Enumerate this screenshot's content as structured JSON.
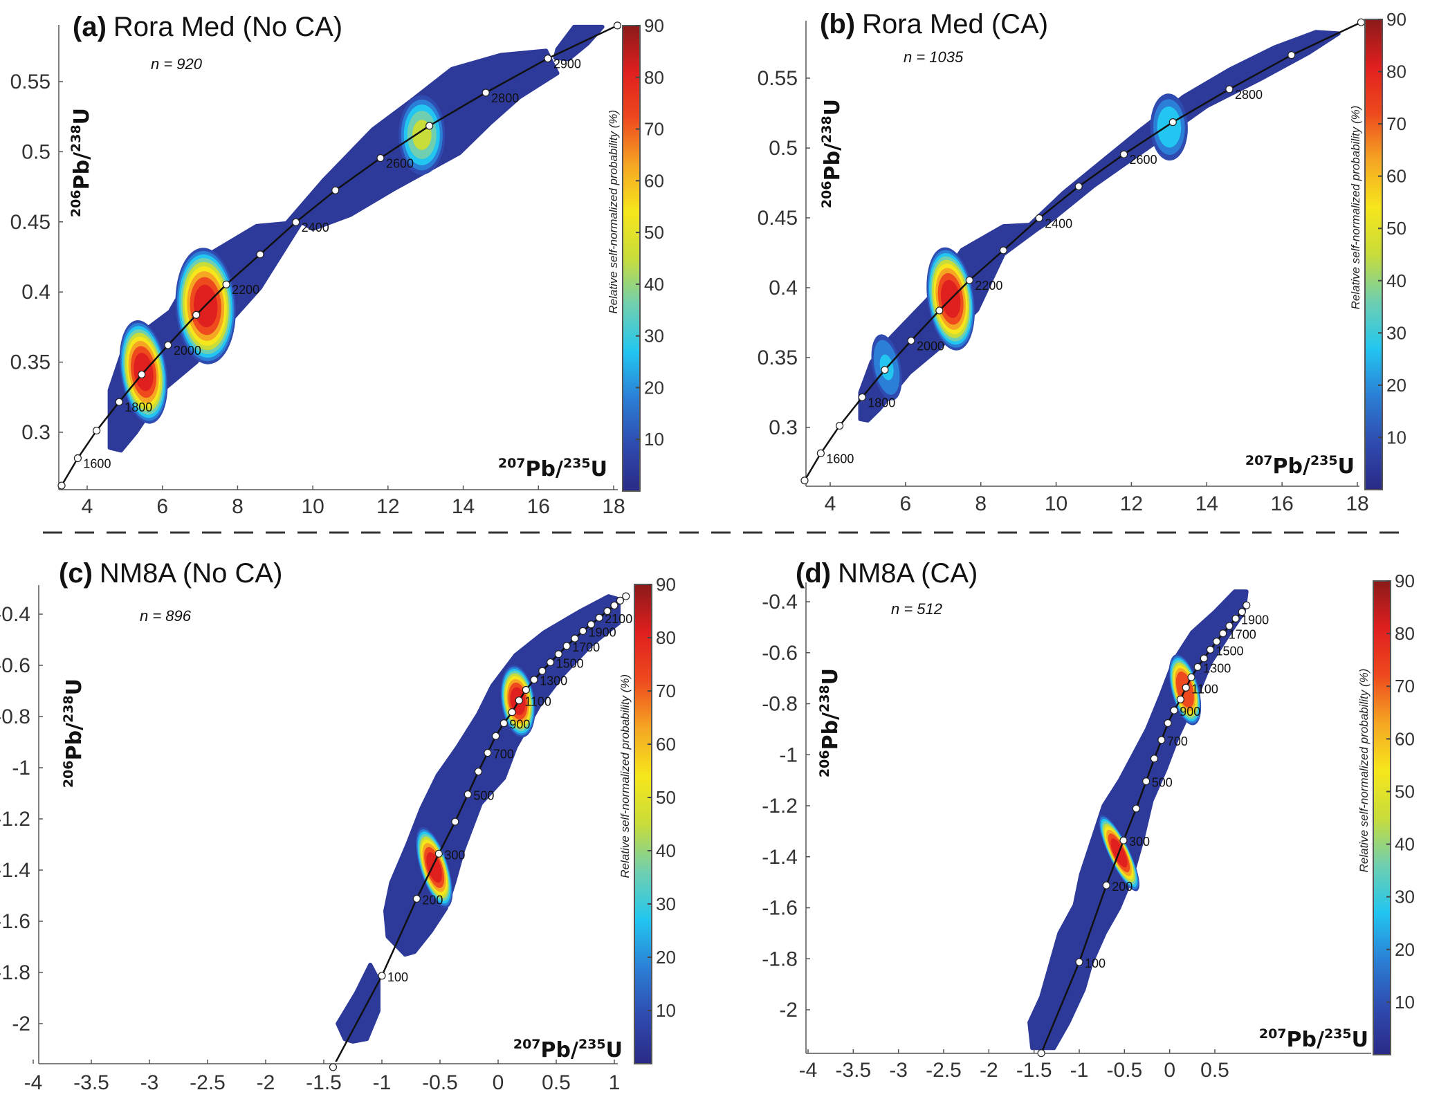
{
  "separator": {
    "style": "dashed"
  },
  "colorbar": {
    "label": "Relative self-normalized probability (%)",
    "ticks": [
      10,
      20,
      30,
      40,
      50,
      60,
      70,
      80,
      90
    ],
    "range": [
      0,
      90
    ],
    "colors": [
      "#2a2a86",
      "#2f4bb0",
      "#2b7fd6",
      "#22c6f0",
      "#6fcfb0",
      "#c8dc3a",
      "#f6e61c",
      "#f5a623",
      "#ee4a1e",
      "#e01f1f",
      "#8b1a1a"
    ]
  },
  "chart_data": [
    {
      "id": "a",
      "type": "heatmap",
      "title_letter": "(a)",
      "title": "Rora Med (No CA)",
      "n_label": "n = 920",
      "xlabel": {
        "sup1": "207",
        "base1": "Pb/",
        "sup2": "235",
        "base2": "U"
      },
      "ylabel": {
        "sup1": "206",
        "base1": "Pb/",
        "sup2": "238",
        "base2": "U"
      },
      "xlim": [
        3.3,
        18.1
      ],
      "ylim": [
        0.262,
        0.59
      ],
      "xticks": [
        4,
        6,
        8,
        10,
        12,
        14,
        16,
        18
      ],
      "yticks": [
        0.3,
        0.35,
        0.4,
        0.45,
        0.5,
        0.55
      ],
      "concordia": [
        {
          "x": 3.32,
          "y": 0.262,
          "age": null
        },
        {
          "x": 3.75,
          "y": 0.2815,
          "age": "1600"
        },
        {
          "x": 4.25,
          "y": 0.3012,
          "age": null
        },
        {
          "x": 4.85,
          "y": 0.3216,
          "age": "1800"
        },
        {
          "x": 5.45,
          "y": 0.3412,
          "age": null
        },
        {
          "x": 6.15,
          "y": 0.3621,
          "age": "2000"
        },
        {
          "x": 6.9,
          "y": 0.3837,
          "age": null
        },
        {
          "x": 7.7,
          "y": 0.4054,
          "age": "2200"
        },
        {
          "x": 8.6,
          "y": 0.4268,
          "age": null
        },
        {
          "x": 9.55,
          "y": 0.4498,
          "age": "2400"
        },
        {
          "x": 10.6,
          "y": 0.4725,
          "age": null
        },
        {
          "x": 11.8,
          "y": 0.4955,
          "age": "2600"
        },
        {
          "x": 13.1,
          "y": 0.5185,
          "age": null
        },
        {
          "x": 14.6,
          "y": 0.5421,
          "age": "2800"
        },
        {
          "x": 16.25,
          "y": 0.5665,
          "age": "2900"
        },
        {
          "x": 18.1,
          "y": 0.59,
          "age": null
        }
      ],
      "density_peaks": [
        {
          "x": 5.5,
          "y": 0.343,
          "value": 90,
          "sx": 0.45,
          "sy": 0.016
        },
        {
          "x": 7.15,
          "y": 0.39,
          "value": 88,
          "sx": 0.6,
          "sy": 0.018
        },
        {
          "x": 12.9,
          "y": 0.512,
          "value": 45,
          "sx": 0.45,
          "sy": 0.012
        }
      ],
      "envelope": [
        [
          4.6,
          0.289
        ],
        [
          4.6,
          0.33
        ],
        [
          5.0,
          0.362
        ],
        [
          6.2,
          0.386
        ],
        [
          7.0,
          0.423
        ],
        [
          8.5,
          0.447
        ],
        [
          9.3,
          0.449
        ],
        [
          10.3,
          0.48
        ],
        [
          11.6,
          0.516
        ],
        [
          12.6,
          0.536
        ],
        [
          13.7,
          0.559
        ],
        [
          15.0,
          0.569
        ],
        [
          16.2,
          0.572
        ],
        [
          16.5,
          0.556
        ],
        [
          15.5,
          0.539
        ],
        [
          14.7,
          0.52
        ],
        [
          13.9,
          0.499
        ],
        [
          12.2,
          0.474
        ],
        [
          11.0,
          0.455
        ],
        [
          10.0,
          0.445
        ],
        [
          9.7,
          0.45
        ],
        [
          8.6,
          0.403
        ],
        [
          7.5,
          0.37
        ],
        [
          6.9,
          0.35
        ],
        [
          6.1,
          0.332
        ],
        [
          5.3,
          0.3
        ],
        [
          4.9,
          0.287
        ]
      ],
      "envelope2": [
        [
          16.5,
          0.573
        ],
        [
          16.95,
          0.589
        ],
        [
          17.7,
          0.589
        ],
        [
          17.3,
          0.577
        ],
        [
          16.8,
          0.566
        ],
        [
          16.45,
          0.567
        ]
      ]
    },
    {
      "id": "b",
      "type": "heatmap",
      "title_letter": "(b)",
      "title": "Rora Med (CA)",
      "n_label": "n = 1035",
      "xlabel": {
        "sup1": "207",
        "base1": "Pb/",
        "sup2": "235",
        "base2": "U"
      },
      "ylabel": {
        "sup1": "206",
        "base1": "Pb/",
        "sup2": "238",
        "base2": "U"
      },
      "xlim": [
        3.3,
        18.1
      ],
      "ylim": [
        0.262,
        0.59
      ],
      "xticks": [
        4,
        6,
        8,
        10,
        12,
        14,
        16,
        18
      ],
      "yticks": [
        0.3,
        0.35,
        0.4,
        0.45,
        0.5,
        0.55
      ],
      "concordia": [
        {
          "x": 3.32,
          "y": 0.262,
          "age": null
        },
        {
          "x": 3.75,
          "y": 0.2815,
          "age": "1600"
        },
        {
          "x": 4.25,
          "y": 0.3012,
          "age": null
        },
        {
          "x": 4.85,
          "y": 0.3216,
          "age": "1800"
        },
        {
          "x": 5.45,
          "y": 0.3412,
          "age": null
        },
        {
          "x": 6.15,
          "y": 0.3621,
          "age": "2000"
        },
        {
          "x": 6.9,
          "y": 0.3837,
          "age": null
        },
        {
          "x": 7.7,
          "y": 0.4054,
          "age": "2200"
        },
        {
          "x": 8.6,
          "y": 0.4268,
          "age": null
        },
        {
          "x": 9.55,
          "y": 0.4498,
          "age": "2400"
        },
        {
          "x": 10.6,
          "y": 0.4725,
          "age": null
        },
        {
          "x": 11.8,
          "y": 0.4955,
          "age": "2600"
        },
        {
          "x": 13.1,
          "y": 0.5185,
          "age": null
        },
        {
          "x": 14.6,
          "y": 0.5421,
          "age": "2800"
        },
        {
          "x": 16.25,
          "y": 0.5665,
          "age": null
        },
        {
          "x": 18.1,
          "y": 0.59,
          "age": null
        }
      ],
      "density_peaks": [
        {
          "x": 7.2,
          "y": 0.392,
          "value": 88,
          "sx": 0.45,
          "sy": 0.016
        },
        {
          "x": 5.5,
          "y": 0.343,
          "value": 25,
          "sx": 0.25,
          "sy": 0.01
        },
        {
          "x": 13.0,
          "y": 0.515,
          "value": 30,
          "sx": 0.35,
          "sy": 0.01
        }
      ],
      "envelope": [
        [
          4.8,
          0.306
        ],
        [
          4.8,
          0.325
        ],
        [
          5.1,
          0.347
        ],
        [
          5.6,
          0.364
        ],
        [
          6.6,
          0.392
        ],
        [
          7.5,
          0.427
        ],
        [
          8.6,
          0.444
        ],
        [
          9.3,
          0.445
        ],
        [
          10.2,
          0.468
        ],
        [
          11.2,
          0.49
        ],
        [
          12.2,
          0.512
        ],
        [
          13.4,
          0.537
        ],
        [
          14.6,
          0.556
        ],
        [
          15.8,
          0.572
        ],
        [
          16.9,
          0.583
        ],
        [
          17.5,
          0.582
        ],
        [
          16.7,
          0.568
        ],
        [
          15.4,
          0.549
        ],
        [
          14.0,
          0.53
        ],
        [
          12.8,
          0.507
        ],
        [
          11.9,
          0.49
        ],
        [
          11.0,
          0.473
        ],
        [
          9.9,
          0.449
        ],
        [
          9.5,
          0.442
        ],
        [
          8.6,
          0.424
        ],
        [
          7.9,
          0.384
        ],
        [
          6.9,
          0.357
        ],
        [
          6.1,
          0.339
        ],
        [
          5.3,
          0.313
        ],
        [
          5.0,
          0.305
        ]
      ]
    },
    {
      "id": "c",
      "type": "heatmap",
      "title_letter": "(c)",
      "title": "NM8A (No CA)",
      "n_label": "n = 896",
      "xlabel": {
        "sup1": "207",
        "base1": "Pb/",
        "sup2": "235",
        "base2": "U"
      },
      "ylabel": {
        "sup1": "206",
        "base1": "Pb/",
        "sup2": "238",
        "base2": "U"
      },
      "xlim": [
        -4.05,
        1.1
      ],
      "ylim": [
        -2.17,
        -0.3
      ],
      "xticks": [
        -4,
        -3.5,
        -3,
        -2.5,
        -2,
        -1.5,
        -1,
        -0.5,
        0,
        0.5,
        1
      ],
      "yticks": [
        -2,
        -1.8,
        -1.6,
        -1.4,
        -1.2,
        -1,
        -0.8,
        -0.6,
        -0.4
      ],
      "concordia": [
        {
          "x": -1.42,
          "y": -2.17,
          "age": null
        },
        {
          "x": -1.0,
          "y": -1.813,
          "age": "100"
        },
        {
          "x": -0.7,
          "y": -1.512,
          "age": "200"
        },
        {
          "x": -0.51,
          "y": -1.336,
          "age": "300"
        },
        {
          "x": -0.37,
          "y": -1.211,
          "age": null
        },
        {
          "x": -0.26,
          "y": -1.104,
          "age": "500"
        },
        {
          "x": -0.17,
          "y": -1.015,
          "age": null
        },
        {
          "x": -0.09,
          "y": -0.942,
          "age": "700"
        },
        {
          "x": -0.02,
          "y": -0.876,
          "age": null
        },
        {
          "x": 0.05,
          "y": -0.826,
          "age": "900"
        },
        {
          "x": 0.12,
          "y": -0.783,
          "age": null
        },
        {
          "x": 0.18,
          "y": -0.737,
          "age": "1100"
        },
        {
          "x": 0.24,
          "y": -0.696,
          "age": null
        },
        {
          "x": 0.31,
          "y": -0.656,
          "age": "1300"
        },
        {
          "x": 0.38,
          "y": -0.622,
          "age": null
        },
        {
          "x": 0.45,
          "y": -0.588,
          "age": "1500"
        },
        {
          "x": 0.52,
          "y": -0.556,
          "age": null
        },
        {
          "x": 0.59,
          "y": -0.524,
          "age": "1700"
        },
        {
          "x": 0.66,
          "y": -0.495,
          "age": null
        },
        {
          "x": 0.73,
          "y": -0.466,
          "age": "1900"
        },
        {
          "x": 0.8,
          "y": -0.44,
          "age": null
        },
        {
          "x": 0.87,
          "y": -0.414,
          "age": "2100"
        },
        {
          "x": 0.94,
          "y": -0.388,
          "age": null
        },
        {
          "x": 1.0,
          "y": -0.366,
          "age": null
        },
        {
          "x": 1.05,
          "y": -0.347,
          "age": null
        },
        {
          "x": 1.1,
          "y": -0.33,
          "age": null
        }
      ],
      "density_peaks": [
        {
          "x": -0.55,
          "y": -1.39,
          "value": 90,
          "sx": 0.08,
          "sy": 0.07
        },
        {
          "x": 0.17,
          "y": -0.74,
          "value": 88,
          "sx": 0.1,
          "sy": 0.06
        }
      ],
      "envelope": [
        [
          -0.8,
          -1.73
        ],
        [
          -0.95,
          -1.66
        ],
        [
          -0.97,
          -1.56
        ],
        [
          -0.92,
          -1.45
        ],
        [
          -0.78,
          -1.3
        ],
        [
          -0.66,
          -1.16
        ],
        [
          -0.52,
          -1.03
        ],
        [
          -0.35,
          -0.92
        ],
        [
          -0.17,
          -0.79
        ],
        [
          -0.05,
          -0.68
        ],
        [
          0.15,
          -0.56
        ],
        [
          0.4,
          -0.47
        ],
        [
          0.7,
          -0.39
        ],
        [
          0.95,
          -0.33
        ],
        [
          1.1,
          -0.35
        ],
        [
          1.05,
          -0.43
        ],
        [
          0.8,
          -0.52
        ],
        [
          0.55,
          -0.64
        ],
        [
          0.35,
          -0.76
        ],
        [
          0.15,
          -0.92
        ],
        [
          0.05,
          -1.04
        ],
        [
          -0.15,
          -1.14
        ],
        [
          -0.3,
          -1.32
        ],
        [
          -0.38,
          -1.45
        ],
        [
          -0.45,
          -1.55
        ],
        [
          -0.58,
          -1.64
        ],
        [
          -0.72,
          -1.72
        ]
      ],
      "envelope2": [
        [
          -1.32,
          -2.06
        ],
        [
          -1.38,
          -2.0
        ],
        [
          -1.22,
          -1.88
        ],
        [
          -1.1,
          -1.77
        ],
        [
          -1.03,
          -1.83
        ],
        [
          -1.03,
          -1.95
        ],
        [
          -1.13,
          -2.06
        ],
        [
          -1.25,
          -2.07
        ]
      ]
    },
    {
      "id": "d",
      "type": "heatmap",
      "title_letter": "(d)",
      "title": "NM8A (CA)",
      "n_label": "n = 512",
      "xlabel": {
        "sup1": "207",
        "base1": "Pb/",
        "sup2": "235",
        "base2": "U"
      },
      "ylabel": {
        "sup1": "206",
        "base1": "Pb/",
        "sup2": "238",
        "base2": "U"
      },
      "xlim": [
        -4.05,
        0.85
      ],
      "ylim": [
        -2.17,
        -0.33
      ],
      "xticks": [
        -4,
        -3.5,
        -3,
        -2.5,
        -2,
        -1.5,
        -1,
        -0.5,
        0,
        0.5
      ],
      "yticks": [
        -2,
        -1.8,
        -1.6,
        -1.4,
        -1.2,
        -1,
        -0.8,
        -0.6,
        -0.4
      ],
      "concordia": [
        {
          "x": -1.42,
          "y": -2.17,
          "age": null
        },
        {
          "x": -1.0,
          "y": -1.813,
          "age": "100"
        },
        {
          "x": -0.7,
          "y": -1.512,
          "age": "200"
        },
        {
          "x": -0.51,
          "y": -1.336,
          "age": "300"
        },
        {
          "x": -0.37,
          "y": -1.211,
          "age": null
        },
        {
          "x": -0.26,
          "y": -1.104,
          "age": "500"
        },
        {
          "x": -0.17,
          "y": -1.015,
          "age": null
        },
        {
          "x": -0.09,
          "y": -0.942,
          "age": "700"
        },
        {
          "x": -0.02,
          "y": -0.876,
          "age": null
        },
        {
          "x": 0.05,
          "y": -0.826,
          "age": "900"
        },
        {
          "x": 0.12,
          "y": -0.783,
          "age": null
        },
        {
          "x": 0.18,
          "y": -0.737,
          "age": "1100"
        },
        {
          "x": 0.24,
          "y": -0.696,
          "age": null
        },
        {
          "x": 0.31,
          "y": -0.656,
          "age": "1300"
        },
        {
          "x": 0.38,
          "y": -0.622,
          "age": null
        },
        {
          "x": 0.45,
          "y": -0.588,
          "age": "1500"
        },
        {
          "x": 0.52,
          "y": -0.556,
          "age": null
        },
        {
          "x": 0.59,
          "y": -0.524,
          "age": "1700"
        },
        {
          "x": 0.66,
          "y": -0.495,
          "age": null
        },
        {
          "x": 0.73,
          "y": -0.466,
          "age": "1900"
        },
        {
          "x": 0.8,
          "y": -0.44,
          "age": null
        },
        {
          "x": 0.85,
          "y": -0.414,
          "age": null
        }
      ],
      "density_peaks": [
        {
          "x": -0.56,
          "y": -1.385,
          "value": 90,
          "sx": 0.07,
          "sy": 0.07
        },
        {
          "x": 0.17,
          "y": -0.745,
          "value": 85,
          "sx": 0.1,
          "sy": 0.06
        }
      ],
      "envelope": [
        [
          -1.52,
          -2.15
        ],
        [
          -1.55,
          -2.05
        ],
        [
          -1.42,
          -1.95
        ],
        [
          -1.3,
          -1.8
        ],
        [
          -1.22,
          -1.7
        ],
        [
          -1.05,
          -1.59
        ],
        [
          -0.98,
          -1.47
        ],
        [
          -0.85,
          -1.33
        ],
        [
          -0.73,
          -1.2
        ],
        [
          -0.55,
          -1.1
        ],
        [
          -0.4,
          -1.0
        ],
        [
          -0.25,
          -0.9
        ],
        [
          -0.1,
          -0.77
        ],
        [
          0.05,
          -0.63
        ],
        [
          0.25,
          -0.52
        ],
        [
          0.5,
          -0.44
        ],
        [
          0.72,
          -0.36
        ],
        [
          0.85,
          -0.36
        ],
        [
          0.82,
          -0.44
        ],
        [
          0.65,
          -0.53
        ],
        [
          0.45,
          -0.64
        ],
        [
          0.3,
          -0.77
        ],
        [
          0.1,
          -0.92
        ],
        [
          -0.05,
          -1.06
        ],
        [
          -0.2,
          -1.18
        ],
        [
          -0.3,
          -1.33
        ],
        [
          -0.42,
          -1.48
        ],
        [
          -0.56,
          -1.6
        ],
        [
          -0.72,
          -1.7
        ],
        [
          -0.87,
          -1.82
        ],
        [
          -0.95,
          -1.92
        ],
        [
          -1.12,
          -2.05
        ],
        [
          -1.28,
          -2.15
        ]
      ]
    }
  ]
}
